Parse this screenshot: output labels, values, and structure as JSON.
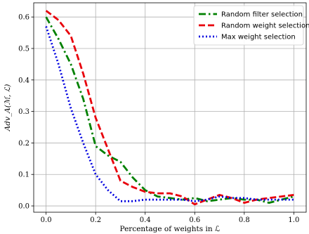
{
  "chart_data": {
    "type": "line",
    "title": "",
    "xlabel": "Percentage of weights in ℒ",
    "ylabel": "Adv_A(ℳ, ℒ)",
    "xlim": [
      -0.05,
      1.05
    ],
    "ylim": [
      -0.02,
      0.645
    ],
    "xticks": [
      0.0,
      0.2,
      0.4,
      0.6,
      0.8,
      1.0
    ],
    "xtick_labels": [
      "0.0",
      "0.2",
      "0.4",
      "0.6",
      "0.8",
      "1.0"
    ],
    "yticks": [
      0.0,
      0.1,
      0.2,
      0.3,
      0.4,
      0.5,
      0.6
    ],
    "ytick_labels": [
      "0.0",
      "0.1",
      "0.2",
      "0.3",
      "0.4",
      "0.5",
      "0.6"
    ],
    "grid": true,
    "legend_position": "top-right",
    "series": [
      {
        "name": "Random filter selection",
        "color": "#008000",
        "style": "dashdot",
        "x": [
          0.0,
          0.05,
          0.1,
          0.15,
          0.2,
          0.25,
          0.3,
          0.35,
          0.4,
          0.45,
          0.5,
          0.55,
          0.6,
          0.65,
          0.7,
          0.75,
          0.8,
          0.85,
          0.9,
          0.95,
          1.0
        ],
        "y": [
          0.6,
          0.53,
          0.45,
          0.34,
          0.19,
          0.16,
          0.14,
          0.09,
          0.05,
          0.03,
          0.025,
          0.02,
          0.025,
          0.015,
          0.02,
          0.025,
          0.02,
          0.02,
          0.01,
          0.02,
          0.03
        ]
      },
      {
        "name": "Random weight selection",
        "color": "#e8000b",
        "style": "dashed",
        "x": [
          0.0,
          0.05,
          0.1,
          0.15,
          0.2,
          0.25,
          0.3,
          0.35,
          0.4,
          0.45,
          0.5,
          0.55,
          0.6,
          0.65,
          0.7,
          0.75,
          0.8,
          0.85,
          0.9,
          0.95,
          1.0
        ],
        "y": [
          0.62,
          0.59,
          0.54,
          0.42,
          0.28,
          0.18,
          0.08,
          0.06,
          0.045,
          0.04,
          0.04,
          0.03,
          0.005,
          0.02,
          0.035,
          0.025,
          0.01,
          0.02,
          0.025,
          0.03,
          0.035
        ]
      },
      {
        "name": "Max weight selection",
        "color": "#0000e0",
        "style": "dotted",
        "x": [
          0.0,
          0.05,
          0.1,
          0.15,
          0.2,
          0.25,
          0.3,
          0.35,
          0.4,
          0.45,
          0.5,
          0.55,
          0.6,
          0.65,
          0.7,
          0.75,
          0.8,
          0.85,
          0.9,
          0.95,
          1.0
        ],
        "y": [
          0.57,
          0.45,
          0.31,
          0.2,
          0.1,
          0.05,
          0.015,
          0.015,
          0.02,
          0.02,
          0.02,
          0.02,
          0.015,
          0.02,
          0.03,
          0.025,
          0.025,
          0.02,
          0.02,
          0.02,
          0.02
        ]
      }
    ]
  }
}
